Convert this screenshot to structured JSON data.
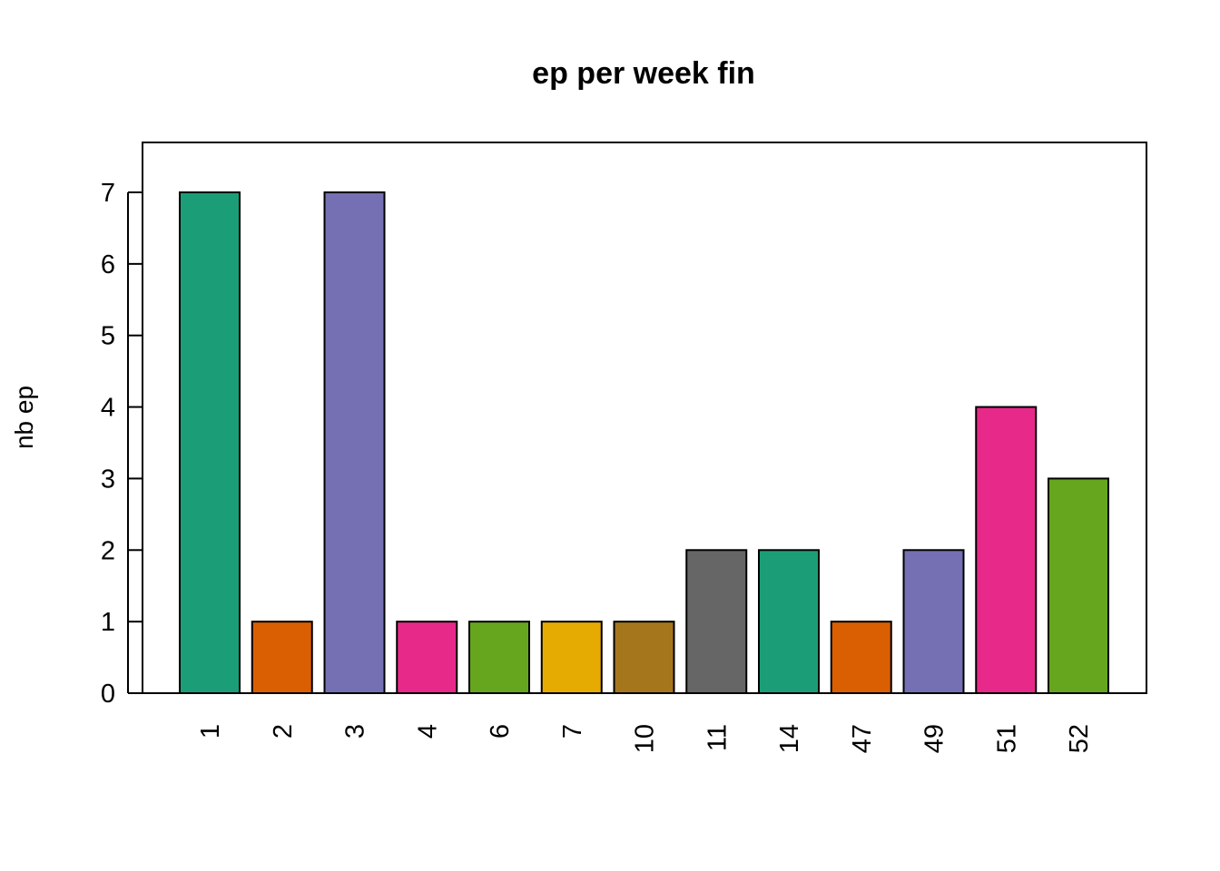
{
  "chart_data": {
    "type": "bar",
    "title": "ep per week fin",
    "xlabel": "",
    "ylabel": "nb ep",
    "categories": [
      "1",
      "2",
      "3",
      "4",
      "6",
      "7",
      "10",
      "11",
      "14",
      "47",
      "49",
      "51",
      "52"
    ],
    "values": [
      7,
      1,
      7,
      1,
      1,
      1,
      1,
      2,
      2,
      1,
      2,
      4,
      3
    ],
    "colors": [
      "#1B9E77",
      "#D95F02",
      "#7570B3",
      "#E7298A",
      "#66A61E",
      "#E6AB02",
      "#A6761D",
      "#666666",
      "#1B9E77",
      "#D95F02",
      "#7570B3",
      "#E7298A",
      "#66A61E"
    ],
    "yticks": [
      "0",
      "1",
      "2",
      "3",
      "4",
      "5",
      "6",
      "7"
    ],
    "ylim": [
      0,
      7.7
    ],
    "grid": false,
    "legend": "none"
  }
}
